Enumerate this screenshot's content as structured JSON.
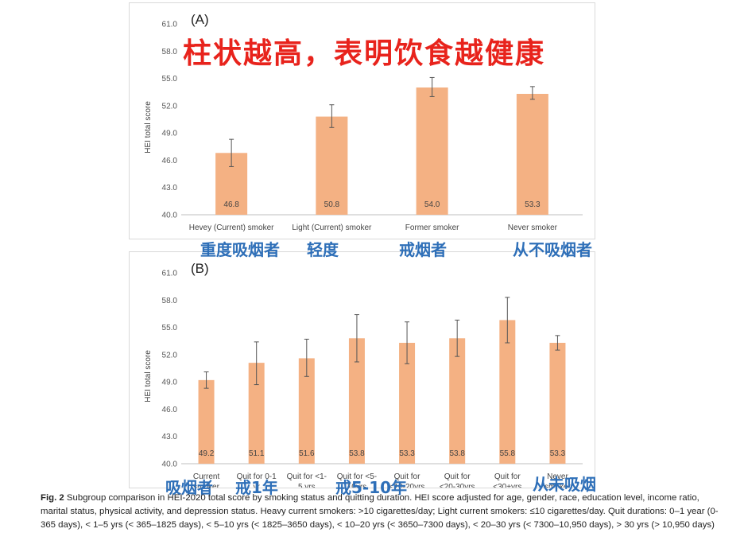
{
  "chart_data": [
    {
      "type": "bar",
      "panel_label": "(A)",
      "ylabel": "HEI total score",
      "ylim": [
        40.0,
        61.0
      ],
      "yticks": [
        "40.0",
        "43.0",
        "46.0",
        "49.0",
        "52.0",
        "55.0",
        "58.0",
        "61.0"
      ],
      "categories": [
        "Hevey (Current) smoker",
        "Light (Current) smoker",
        "Former smoker",
        "Never smoker"
      ],
      "values": [
        46.8,
        50.8,
        54.0,
        53.3
      ],
      "value_labels": [
        "46.8",
        "50.8",
        "54.0",
        "53.3"
      ],
      "error_low": [
        45.3,
        49.6,
        53.0,
        52.7
      ],
      "error_high": [
        48.3,
        52.1,
        55.1,
        54.1
      ],
      "bar_color": "#f4b183",
      "grid": false
    },
    {
      "type": "bar",
      "panel_label": "(B)",
      "ylabel": "HEI total score",
      "ylim": [
        40.0,
        61.0
      ],
      "yticks": [
        "40.0",
        "43.0",
        "46.0",
        "49.0",
        "52.0",
        "55.0",
        "58.0",
        "61.0"
      ],
      "categories": [
        [
          "Current",
          "smoker"
        ],
        [
          "Quit for 0-1",
          "yr"
        ],
        [
          "Quit for <1-",
          "5 yrs"
        ],
        [
          "Quit for <5-",
          "10yrs"
        ],
        [
          "Quit for",
          "<10-20yrs"
        ],
        [
          "Quit for",
          "<20-30yrs"
        ],
        [
          "Quit for",
          "<30+yrs"
        ],
        [
          "Never",
          "smoker"
        ]
      ],
      "values": [
        49.2,
        51.1,
        51.6,
        53.8,
        53.3,
        53.8,
        55.8,
        53.3
      ],
      "value_labels": [
        "49.2",
        "51.1",
        "51.6",
        "53.8",
        "53.3",
        "53.8",
        "55.8",
        "53.3"
      ],
      "error_low": [
        48.3,
        48.7,
        49.6,
        51.2,
        51.0,
        51.8,
        53.3,
        52.5
      ],
      "error_high": [
        50.1,
        53.4,
        53.7,
        56.4,
        55.6,
        55.8,
        58.3,
        54.1
      ],
      "bar_color": "#f4b183",
      "grid": false
    }
  ],
  "annotations": {
    "headline": "柱状越高，表明饮食越健康",
    "panel_a_labels": [
      "重度吸烟者",
      "轻度",
      "戒烟者",
      "从不吸烟者"
    ],
    "panel_b_labels": [
      "吸烟者",
      "戒1年",
      "戒5-10年",
      "从未吸烟"
    ],
    "headline_color": "#e8231c",
    "label_color": "#2e6fb8"
  },
  "caption": {
    "fig_label": "Fig. 2",
    "text": "Subgroup comparison in HEI-2020 total score by smoking status and quitting duration. HEI score adjusted for age, gender, race, education level, income ratio, marital status, physical activity, and depression status. Heavy current smokers: >10 cigarettes/day; Light current smokers: ≤10 cigarettes/day. Quit durations: 0–1 year (0-365 days), < 1–5 yrs (< 365–1825 days), < 5–10 yrs (< 1825–3650 days), < 10–20 yrs (< 3650–7300 days), < 20–30 yrs (< 7300–10,950 days), > 30 yrs (> 10,950 days)"
  }
}
